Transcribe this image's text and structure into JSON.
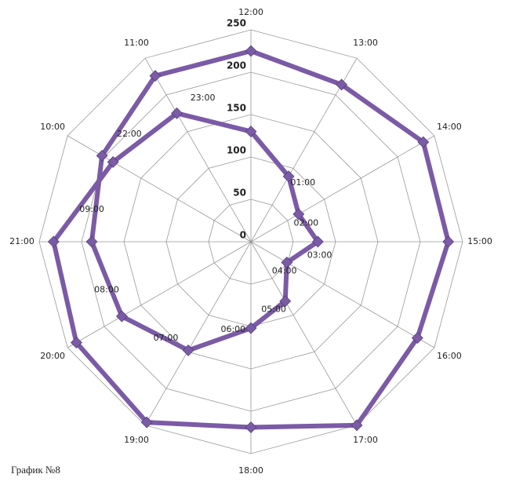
{
  "chart_data": {
    "type": "radar",
    "categories": [
      null,
      "01:00",
      "02:00",
      "03:00",
      "04:00",
      "05:00",
      "06:00",
      "07:00",
      "08:00",
      "09:00",
      "10:00",
      "11:00",
      "12:00",
      "13:00",
      "14:00",
      "15:00",
      "16:00",
      "17:00",
      "18:00",
      "19:00",
      "20:00",
      "21:00",
      "22:00",
      "23:00"
    ],
    "series": [
      {
        "color": "#7b5aa6",
        "values": [
          130,
          89,
          65,
          79,
          49,
          81,
          102,
          148,
          176,
          188,
          203,
          226,
          225,
          214,
          235,
          233,
          227,
          250,
          219,
          246,
          238,
          233,
          188,
          175
        ]
      }
    ],
    "ylim": [
      0,
      250
    ],
    "yticks": [
      0,
      50,
      100,
      150,
      200,
      250
    ],
    "grid": true,
    "caption": "График №8"
  }
}
